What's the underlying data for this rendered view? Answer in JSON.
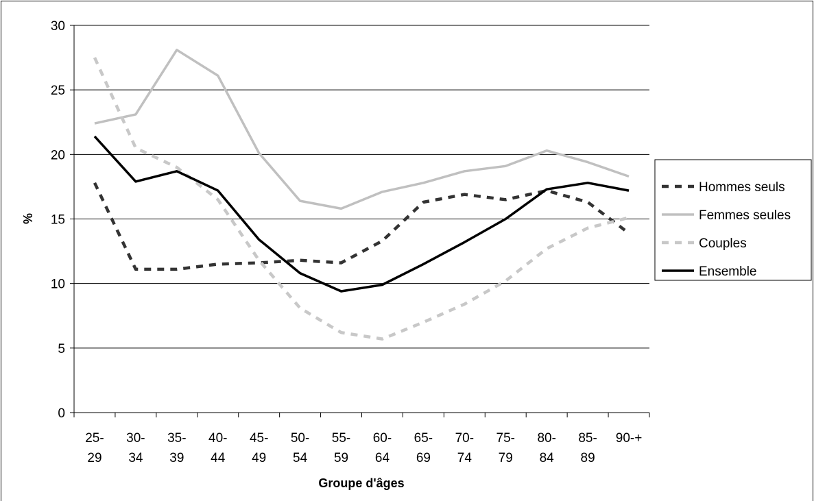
{
  "chart_data": {
    "type": "line",
    "title": "",
    "xlabel": "Groupe d'âges",
    "ylabel": "%",
    "ylim": [
      0,
      30
    ],
    "yticks": [
      "0",
      "5",
      "10",
      "15",
      "20",
      "25",
      "30"
    ],
    "grid": "horizontal",
    "legend_position": "right",
    "categories": [
      [
        "25-",
        "29"
      ],
      [
        "30-",
        "34"
      ],
      [
        "35-",
        "39"
      ],
      [
        "40-",
        "44"
      ],
      [
        "45-",
        "49"
      ],
      [
        "50-",
        "54"
      ],
      [
        "55-",
        "59"
      ],
      [
        "60-",
        "64"
      ],
      [
        "65-",
        "69"
      ],
      [
        "70-",
        "74"
      ],
      [
        "75-",
        "79"
      ],
      [
        "80-",
        "84"
      ],
      [
        "85-",
        "89"
      ],
      [
        "90-+",
        ""
      ]
    ],
    "series": [
      {
        "name": "Hommes seuls",
        "color": "#333333",
        "style": "dashed",
        "values": [
          17.8,
          11.1,
          11.1,
          11.5,
          11.6,
          11.8,
          11.6,
          13.3,
          16.3,
          16.9,
          16.5,
          17.2,
          16.3,
          13.9
        ]
      },
      {
        "name": "Femmes seules",
        "color": "#c0c0c0",
        "style": "solid",
        "values": [
          22.4,
          23.1,
          28.1,
          26.1,
          20.1,
          16.4,
          15.8,
          17.1,
          17.8,
          18.7,
          19.1,
          20.3,
          19.4,
          18.3
        ]
      },
      {
        "name": "Couples",
        "color": "#c8c8c8",
        "style": "dashed",
        "values": [
          27.5,
          20.5,
          19.0,
          16.5,
          11.8,
          8.1,
          6.2,
          5.7,
          7.0,
          8.4,
          10.2,
          12.7,
          14.3,
          15.1
        ]
      },
      {
        "name": "Ensemble",
        "color": "#000000",
        "style": "solid",
        "values": [
          21.4,
          17.9,
          18.7,
          17.2,
          13.4,
          10.8,
          9.4,
          9.9,
          11.5,
          13.2,
          15.0,
          17.3,
          17.8,
          17.2
        ]
      }
    ]
  }
}
